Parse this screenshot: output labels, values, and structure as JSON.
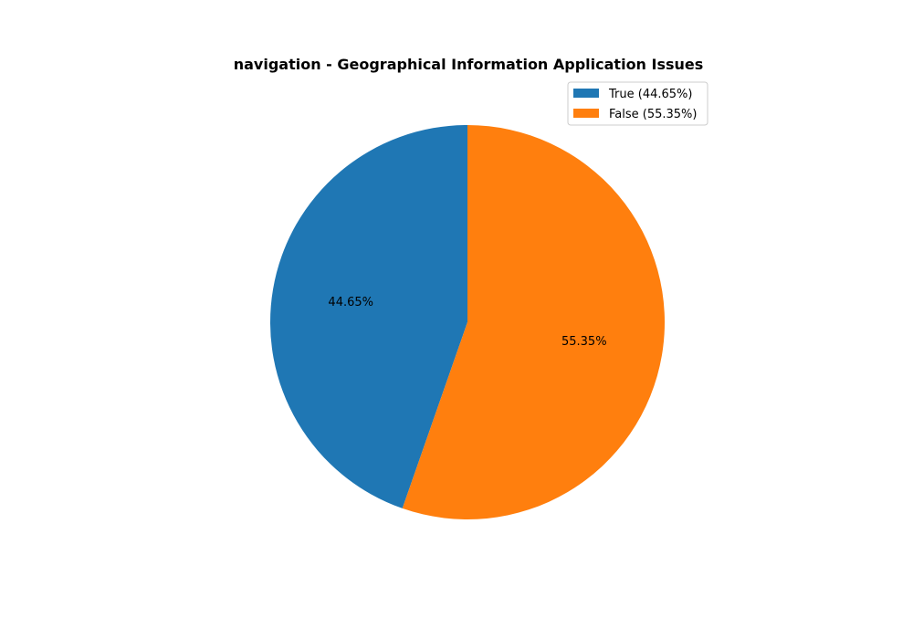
{
  "chart_data": {
    "type": "pie",
    "title": "navigation - Geographical Information Application Issues",
    "categories": [
      "True",
      "False"
    ],
    "values": [
      44.65,
      55.35
    ],
    "slice_labels": [
      "44.65%",
      "55.35%"
    ],
    "legend": {
      "placement": "top-right",
      "entries": [
        "True (44.65%)",
        "False (55.35%)"
      ]
    },
    "colors": [
      "#1f77b4",
      "#ff7f0e"
    ]
  }
}
